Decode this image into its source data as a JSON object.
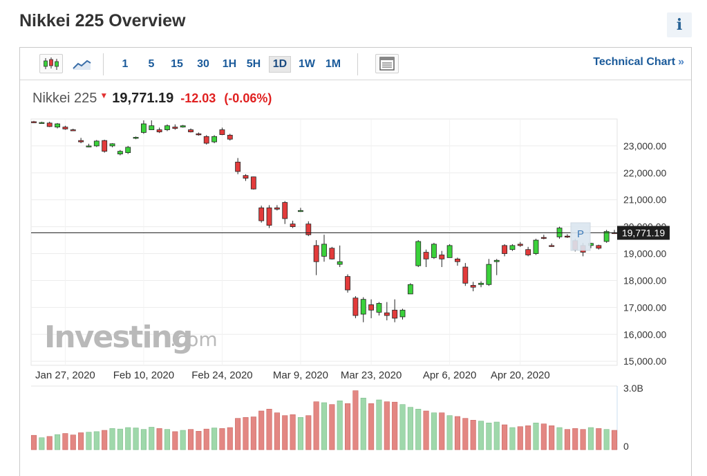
{
  "page": {
    "title": "Nikkei 225 Overview",
    "info_icon": "info-icon"
  },
  "toolbar": {
    "icons": [
      "candlestick-icon",
      "line-chart-icon",
      "table-icon"
    ],
    "timeframes": [
      "1",
      "5",
      "15",
      "30",
      "1H",
      "5H",
      "1D",
      "1W",
      "1M"
    ],
    "active_timeframe": "1D",
    "technical_link": "Technical Chart",
    "technical_arrow": "»"
  },
  "quote": {
    "name": "Nikkei 225",
    "direction": "down",
    "last": "19,771.19",
    "change": "-12.03",
    "change_pct": "(-0.06%)"
  },
  "watermark": {
    "brand": "Investing",
    "domain": ".com"
  },
  "colors": {
    "up": "#3bd13b",
    "down": "#e23b3b",
    "vol_up": "#9fd8ab",
    "vol_down": "#e38783",
    "link": "#1a5a9a"
  },
  "chart_data": {
    "type": "candlestick",
    "y_ticks": [
      "23,000.00",
      "22,000.00",
      "21,000.00",
      "20,000.00",
      "19,000.00",
      "18,000.00",
      "17,000.00",
      "16,000.00",
      "15,000.00"
    ],
    "ylim": [
      14850,
      24000
    ],
    "x_ticks": [
      "Jan 27, 2020",
      "Feb 10, 2020",
      "Feb 24, 2020",
      "Mar 9, 2020",
      "Mar 23, 2020",
      "Apr 6, 2020",
      "Apr 20, 2020"
    ],
    "current_price": 19771.19,
    "current_price_label": "19,771.19",
    "marker": "P",
    "volume_axis": {
      "max_label": "3.0B",
      "min_label": "0"
    },
    "candles": [
      {
        "o": 23900,
        "h": 23930,
        "l": 23850,
        "c": 23860
      },
      {
        "o": 23860,
        "h": 23900,
        "l": 23830,
        "c": 23870
      },
      {
        "o": 23850,
        "h": 23900,
        "l": 23700,
        "c": 23720
      },
      {
        "o": 23700,
        "h": 23850,
        "l": 23650,
        "c": 23820
      },
      {
        "o": 23700,
        "h": 23750,
        "l": 23600,
        "c": 23630
      },
      {
        "o": 23600,
        "h": 23640,
        "l": 23560,
        "c": 23590
      },
      {
        "o": 23200,
        "h": 23300,
        "l": 23100,
        "c": 23150
      },
      {
        "o": 23000,
        "h": 23080,
        "l": 22950,
        "c": 23000
      },
      {
        "o": 23000,
        "h": 23220,
        "l": 22960,
        "c": 23180
      },
      {
        "o": 23200,
        "h": 23230,
        "l": 22750,
        "c": 22800
      },
      {
        "o": 23000,
        "h": 23100,
        "l": 22950,
        "c": 23080
      },
      {
        "o": 22700,
        "h": 22850,
        "l": 22650,
        "c": 22800
      },
      {
        "o": 22750,
        "h": 23000,
        "l": 22700,
        "c": 22950
      },
      {
        "o": 23300,
        "h": 23350,
        "l": 23250,
        "c": 23320
      },
      {
        "o": 23500,
        "h": 23950,
        "l": 23450,
        "c": 23820
      },
      {
        "o": 23600,
        "h": 23950,
        "l": 23600,
        "c": 23750
      },
      {
        "o": 23600,
        "h": 23680,
        "l": 23480,
        "c": 23520
      },
      {
        "o": 23600,
        "h": 23800,
        "l": 23550,
        "c": 23750
      },
      {
        "o": 23700,
        "h": 23800,
        "l": 23600,
        "c": 23650
      },
      {
        "o": 23700,
        "h": 23780,
        "l": 23680,
        "c": 23750
      },
      {
        "o": 23600,
        "h": 23650,
        "l": 23500,
        "c": 23520
      },
      {
        "o": 23450,
        "h": 23500,
        "l": 23380,
        "c": 23420
      },
      {
        "o": 23350,
        "h": 23400,
        "l": 23050,
        "c": 23100
      },
      {
        "o": 23150,
        "h": 23400,
        "l": 23100,
        "c": 23350
      },
      {
        "o": 23600,
        "h": 23680,
        "l": 23400,
        "c": 23420
      },
      {
        "o": 23400,
        "h": 23450,
        "l": 23200,
        "c": 23250
      },
      {
        "o": 22400,
        "h": 22550,
        "l": 21950,
        "c": 22050
      },
      {
        "o": 21900,
        "h": 21950,
        "l": 21700,
        "c": 21800
      },
      {
        "o": 21850,
        "h": 21860,
        "l": 21380,
        "c": 21400
      },
      {
        "o": 20700,
        "h": 20780,
        "l": 20150,
        "c": 20220
      },
      {
        "o": 20700,
        "h": 20800,
        "l": 19950,
        "c": 20050
      },
      {
        "o": 20700,
        "h": 20800,
        "l": 20600,
        "c": 20650
      },
      {
        "o": 20900,
        "h": 20950,
        "l": 20100,
        "c": 20300
      },
      {
        "o": 20100,
        "h": 20220,
        "l": 19950,
        "c": 20000
      },
      {
        "o": 20600,
        "h": 20700,
        "l": 20550,
        "c": 20600
      },
      {
        "o": 20100,
        "h": 20200,
        "l": 19650,
        "c": 19700
      },
      {
        "o": 19300,
        "h": 19500,
        "l": 18200,
        "c": 18700
      },
      {
        "o": 18900,
        "h": 19700,
        "l": 18700,
        "c": 19350
      },
      {
        "o": 19200,
        "h": 19250,
        "l": 18780,
        "c": 18800
      },
      {
        "o": 18600,
        "h": 19300,
        "l": 18500,
        "c": 18700
      },
      {
        "o": 18150,
        "h": 18230,
        "l": 17550,
        "c": 17650
      },
      {
        "o": 17350,
        "h": 17420,
        "l": 16600,
        "c": 16700
      },
      {
        "o": 16750,
        "h": 17380,
        "l": 16450,
        "c": 17300
      },
      {
        "o": 17100,
        "h": 17300,
        "l": 16600,
        "c": 16900
      },
      {
        "o": 16820,
        "h": 17200,
        "l": 16700,
        "c": 17150
      },
      {
        "o": 16800,
        "h": 17200,
        "l": 16520,
        "c": 16700
      },
      {
        "o": 16900,
        "h": 17300,
        "l": 16450,
        "c": 16600
      },
      {
        "o": 16650,
        "h": 16950,
        "l": 16550,
        "c": 16900
      },
      {
        "o": 17500,
        "h": 17900,
        "l": 17500,
        "c": 17850
      },
      {
        "o": 18550,
        "h": 19500,
        "l": 18500,
        "c": 19450
      },
      {
        "o": 19050,
        "h": 19150,
        "l": 18500,
        "c": 18800
      },
      {
        "o": 18850,
        "h": 19400,
        "l": 18800,
        "c": 19350
      },
      {
        "o": 18950,
        "h": 19100,
        "l": 18500,
        "c": 18800
      },
      {
        "o": 18850,
        "h": 19350,
        "l": 18850,
        "c": 19300
      },
      {
        "o": 18800,
        "h": 18850,
        "l": 18550,
        "c": 18700
      },
      {
        "o": 18500,
        "h": 18650,
        "l": 17800,
        "c": 17900
      },
      {
        "o": 17820,
        "h": 17950,
        "l": 17600,
        "c": 17750
      },
      {
        "o": 17850,
        "h": 17970,
        "l": 17750,
        "c": 17900
      },
      {
        "o": 17850,
        "h": 18800,
        "l": 17800,
        "c": 18600
      },
      {
        "o": 18700,
        "h": 18800,
        "l": 18200,
        "c": 18750
      },
      {
        "o": 19300,
        "h": 19350,
        "l": 18900,
        "c": 19000
      },
      {
        "o": 19150,
        "h": 19350,
        "l": 19100,
        "c": 19300
      },
      {
        "o": 19350,
        "h": 19430,
        "l": 19250,
        "c": 19300
      },
      {
        "o": 19150,
        "h": 19250,
        "l": 18900,
        "c": 18950
      },
      {
        "o": 19000,
        "h": 19550,
        "l": 18950,
        "c": 19500
      },
      {
        "o": 19600,
        "h": 19700,
        "l": 19530,
        "c": 19580
      },
      {
        "o": 19300,
        "h": 19380,
        "l": 19250,
        "c": 19280
      },
      {
        "o": 19620,
        "h": 20000,
        "l": 19550,
        "c": 19950
      },
      {
        "o": 19650,
        "h": 19720,
        "l": 19580,
        "c": 19620
      },
      {
        "o": 19480,
        "h": 19550,
        "l": 19080,
        "c": 19150
      },
      {
        "o": 19300,
        "h": 19400,
        "l": 18900,
        "c": 19050
      },
      {
        "o": 19300,
        "h": 19400,
        "l": 19200,
        "c": 19380
      },
      {
        "o": 19300,
        "h": 19330,
        "l": 19150,
        "c": 19200
      },
      {
        "o": 19450,
        "h": 19880,
        "l": 19400,
        "c": 19820
      },
      {
        "o": 19780,
        "h": 19880,
        "l": 19730,
        "c": 19771
      }
    ],
    "volume": [
      0.78,
      0.65,
      0.72,
      0.82,
      0.88,
      0.8,
      0.92,
      0.95,
      0.98,
      1.05,
      1.15,
      1.12,
      1.2,
      1.18,
      1.1,
      1.22,
      1.15,
      1.1,
      0.98,
      1.05,
      1.1,
      1.0,
      1.12,
      1.18,
      1.15,
      1.2,
      1.7,
      1.75,
      1.78,
      2.1,
      2.2,
      2.0,
      1.85,
      1.9,
      1.75,
      1.85,
      2.6,
      2.55,
      2.45,
      2.65,
      2.5,
      3.2,
      2.8,
      2.5,
      2.7,
      2.6,
      2.58,
      2.45,
      2.3,
      2.2,
      2.1,
      2.0,
      2.0,
      1.85,
      1.8,
      1.7,
      1.6,
      1.55,
      1.45,
      1.5,
      1.35,
      1.2,
      1.25,
      1.3,
      1.45,
      1.4,
      1.3,
      1.2,
      1.1,
      1.15,
      1.1,
      1.2,
      1.15,
      1.1,
      1.05
    ]
  }
}
